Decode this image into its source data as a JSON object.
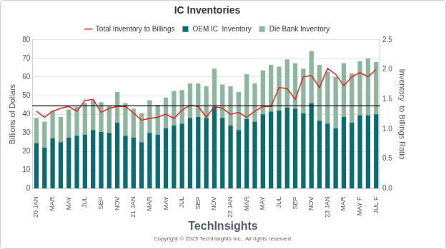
{
  "chart_data": {
    "type": "bar",
    "title": "IC Inventories",
    "categories": [
      "20 JAN",
      null,
      "MAR",
      null,
      "MAY",
      null,
      "JUL",
      null,
      "SEP",
      null,
      "NOV",
      null,
      "21 JAN",
      null,
      "MAR",
      null,
      "MAY",
      null,
      "JUL",
      null,
      "SEP",
      null,
      "NOV",
      null,
      "22 JAN",
      null,
      "MAR",
      null,
      "MAY",
      null,
      "JUL",
      null,
      "SEP",
      null,
      "NOV",
      null,
      "23 JAN",
      null,
      "MAR",
      null,
      "MAY F",
      null,
      "JUL F"
    ],
    "series": [
      {
        "name": "OEM IC  Inventory",
        "type": "bar",
        "color": "#0b6b6e",
        "values": [
          24.5,
          22,
          27,
          25,
          27.5,
          28.5,
          29,
          31.5,
          30.5,
          30,
          35.5,
          28.5,
          27.5,
          25,
          30,
          29,
          32.5,
          34,
          35,
          38,
          38.5,
          38,
          44,
          38,
          34,
          31.5,
          37.5,
          36,
          40,
          41.5,
          42,
          43.5,
          43,
          40.5,
          46,
          36.5,
          35,
          32.5,
          38.5,
          35.5,
          39.5,
          39.5,
          40
        ]
      },
      {
        "name": "Die Bank Inventory",
        "type": "bar",
        "color": "#8db59f",
        "values": [
          13.5,
          14,
          15,
          13.5,
          15,
          15.5,
          17,
          16,
          16,
          14.5,
          16.5,
          17.5,
          15.5,
          15.5,
          17.5,
          16,
          16.5,
          18.5,
          18,
          18.5,
          18,
          17,
          20.5,
          18,
          21,
          20.5,
          24,
          20.5,
          23.5,
          25,
          23.5,
          26,
          24.5,
          24,
          28,
          30,
          28,
          27.5,
          29,
          26.5,
          29,
          30.5,
          28
        ]
      },
      {
        "name": "Total Inventory to Billings",
        "type": "line",
        "color": "#e3261f",
        "axis": "y2",
        "values": [
          1.3,
          1.2,
          1.3,
          1.35,
          1.38,
          1.3,
          1.48,
          1.5,
          1.28,
          1.35,
          1.38,
          1.38,
          1.27,
          1.15,
          1.18,
          1.2,
          1.25,
          1.18,
          1.32,
          1.4,
          1.38,
          1.2,
          1.38,
          1.35,
          1.25,
          1.28,
          1.2,
          1.3,
          1.38,
          1.38,
          1.7,
          1.68,
          1.5,
          1.88,
          1.9,
          1.7,
          2.02,
          1.92,
          1.73,
          1.88,
          1.95,
          1.88,
          2.0
        ]
      }
    ],
    "stacked": true,
    "y_label": "Billions of Dollars",
    "y2_label": "Inventory  to Billings Ratio",
    "ylim": [
      0,
      80
    ],
    "yticks": [
      0,
      10,
      20,
      30,
      40,
      50,
      60,
      70,
      80
    ],
    "y2lim": [
      0,
      2.5
    ],
    "y2ticks": [
      {
        "value": 0,
        "label": "0.0"
      },
      0.5,
      {
        "value": 1,
        "label": "1.0"
      },
      1.5,
      {
        "value": 2,
        "label": "2.0"
      },
      2.5
    ],
    "reference_line": 44.5,
    "grid": true,
    "legend": "top",
    "annotations": [
      "TechInsights",
      "Copyright © 2023 TechInsights Inc.  All rights reserved."
    ]
  }
}
